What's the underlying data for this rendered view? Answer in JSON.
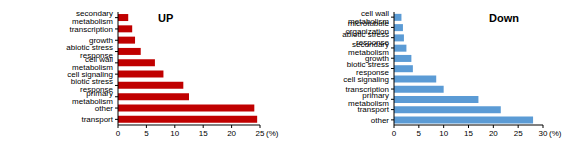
{
  "chart_data": [
    {
      "type": "bar",
      "orientation": "horizontal",
      "title": "UP",
      "xlabel": "(%)",
      "color": "#c00000",
      "categories": [
        "secondary metabolism",
        "transcription",
        "growth",
        "abiotic stress response",
        "cell wall metabolism",
        "cell signaling",
        "biotic stress response",
        "primary metabolism",
        "other",
        "transport"
      ],
      "values": [
        1.8,
        2.5,
        3,
        4,
        6.5,
        8,
        11.5,
        12.5,
        24,
        24.5
      ],
      "xlim": [
        0,
        25
      ],
      "xticks": [
        0,
        5,
        10,
        15,
        20,
        25
      ],
      "grid": false
    },
    {
      "type": "bar",
      "orientation": "horizontal",
      "title": "Down",
      "xlabel": "(%)",
      "color": "#5b9bd5",
      "categories": [
        "cell wall metabolism",
        "microtubule organization",
        "abiotic stress response",
        "secondary metabolism",
        "growth",
        "biotic stress response",
        "cell signaling",
        "transcription",
        "primary metabolism",
        "transport",
        "other"
      ],
      "values": [
        1.5,
        1.8,
        2,
        2.5,
        3.5,
        3.8,
        8.5,
        10,
        17,
        21.5,
        28
      ],
      "xlim": [
        0,
        30
      ],
      "xticks": [
        0,
        5,
        10,
        15,
        20,
        25,
        30
      ],
      "grid": false
    }
  ]
}
